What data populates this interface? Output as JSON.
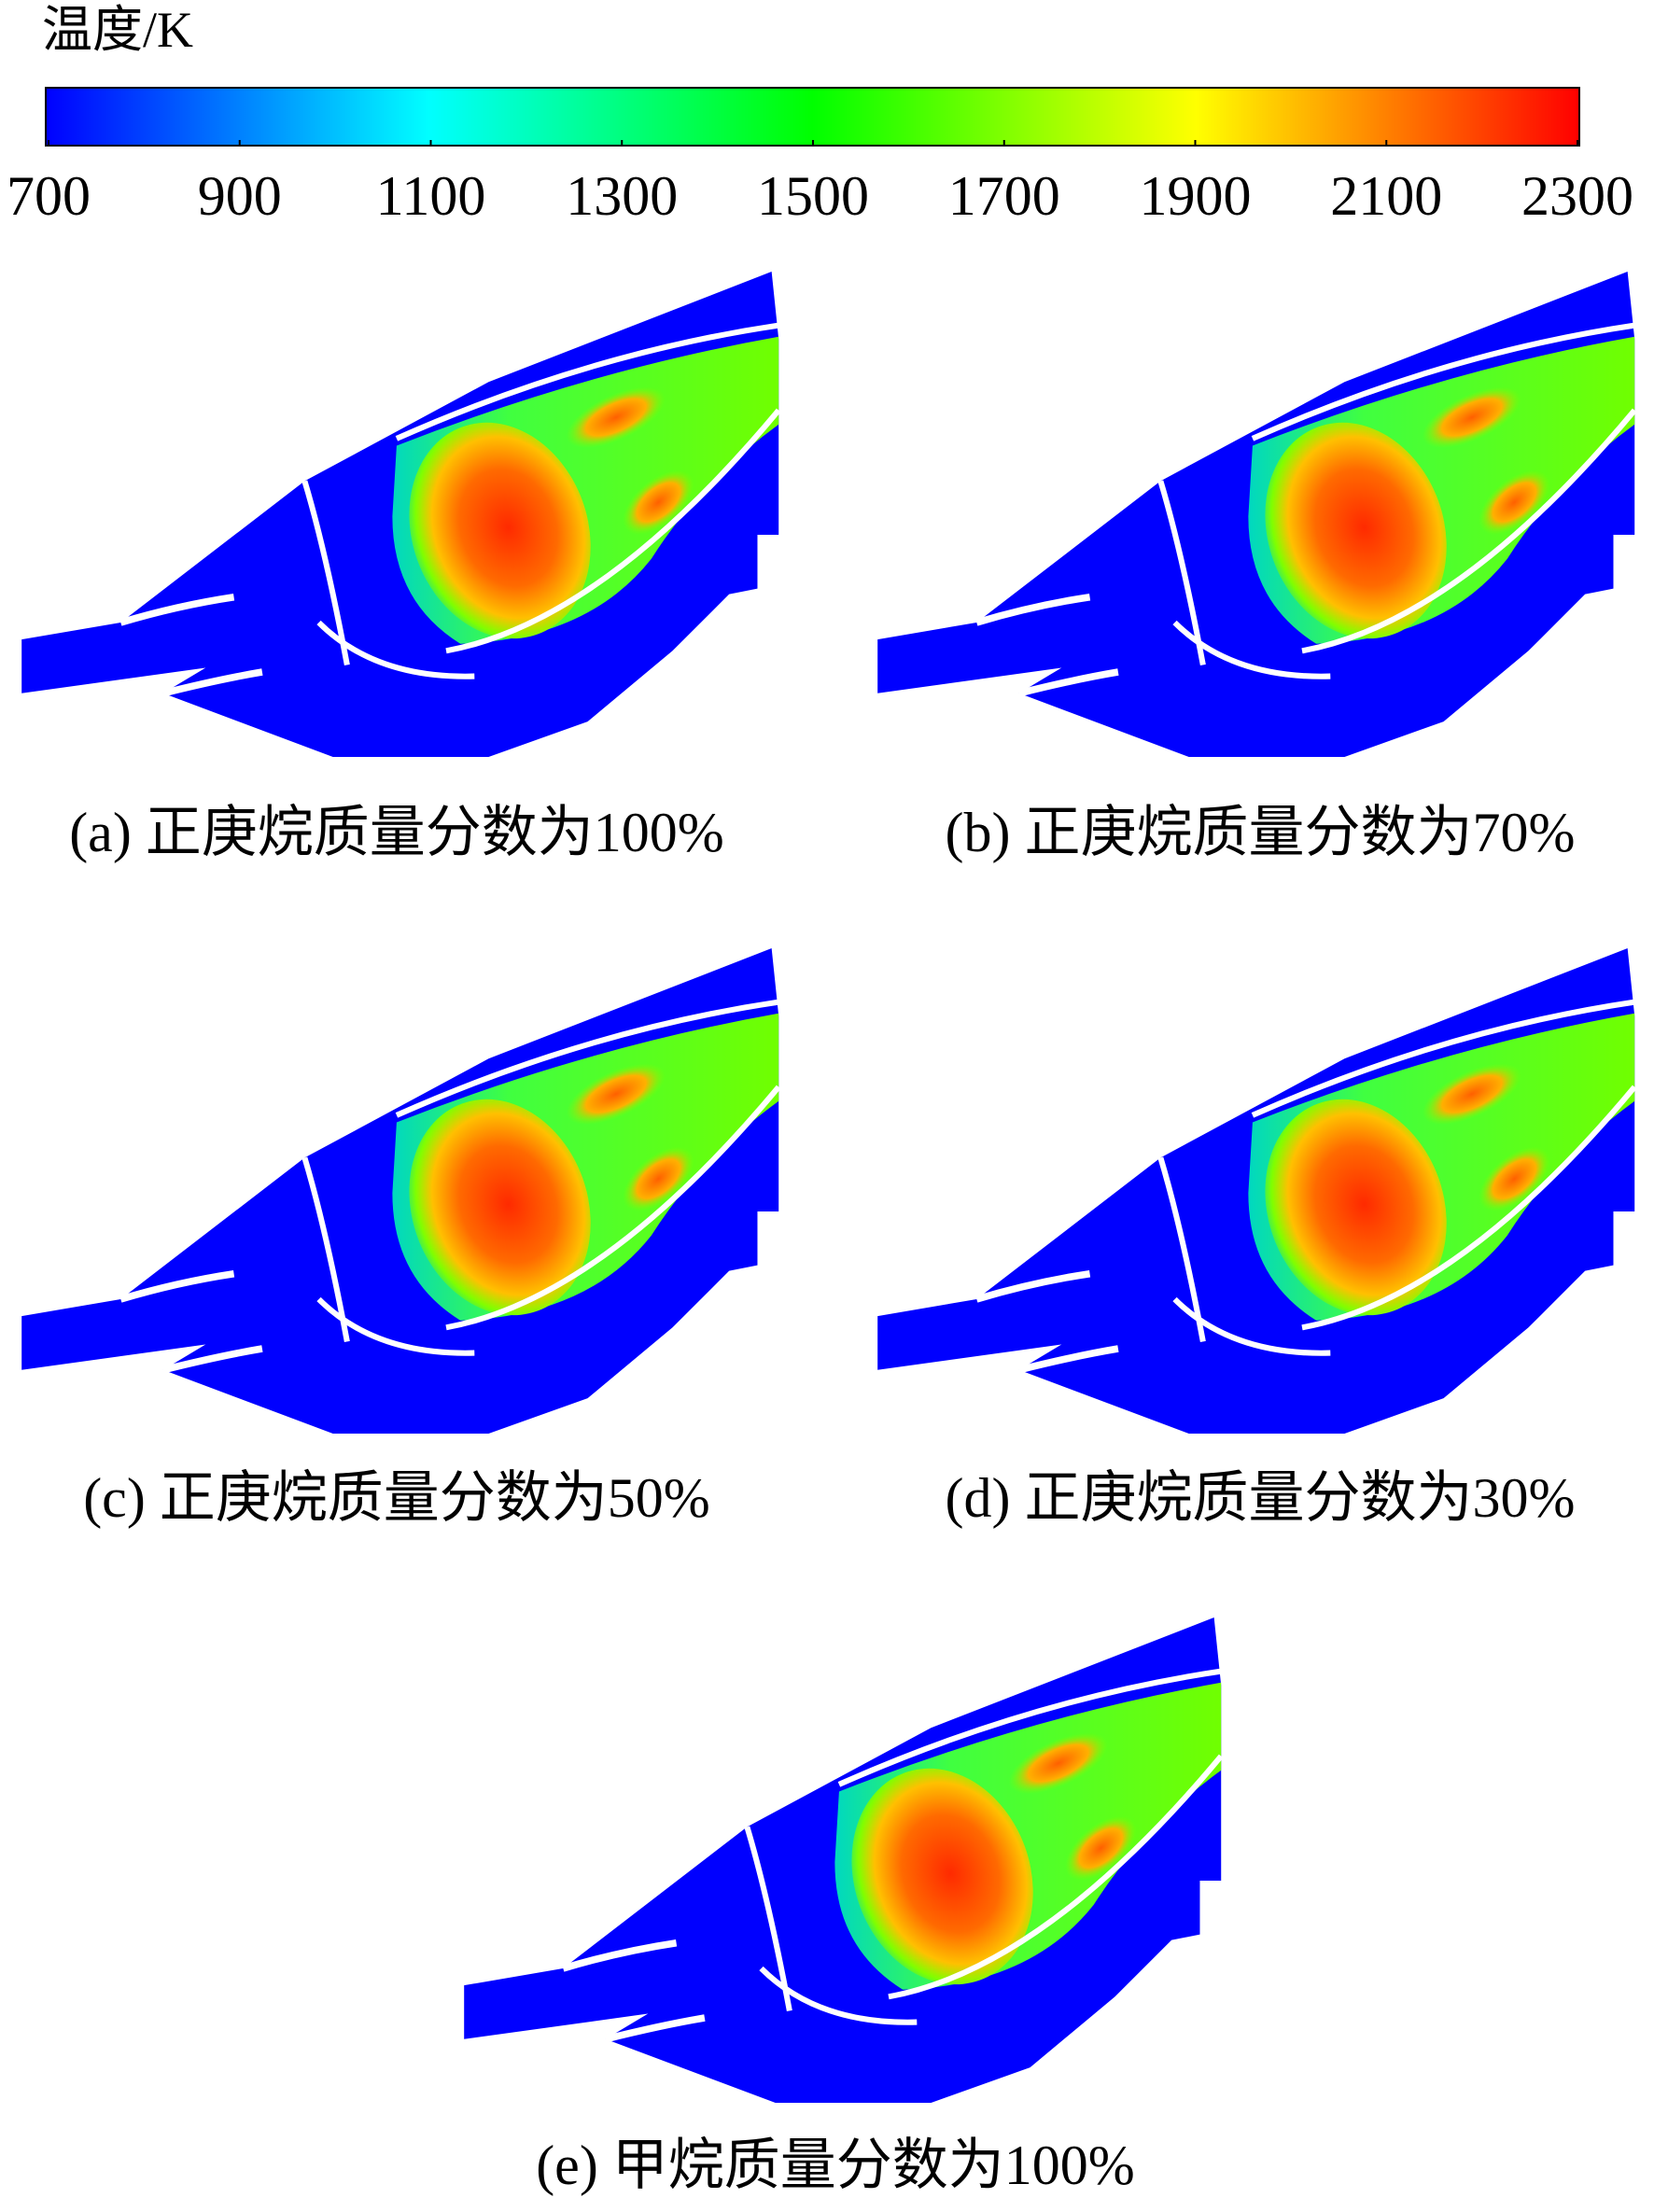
{
  "colorbar": {
    "title": "温度/K",
    "min": 700,
    "max": 2300,
    "ticks": [
      700,
      900,
      1100,
      1300,
      1500,
      1700,
      1900,
      2100,
      2300
    ],
    "colors": [
      "#0000ff",
      "#00ffff",
      "#00ff00",
      "#ffff00",
      "#ff0000"
    ]
  },
  "panels": [
    {
      "caption": "(a) 正庚烷质量分数为100%"
    },
    {
      "caption": "(b) 正庚烷质量分数为70%"
    },
    {
      "caption": "(c) 正庚烷质量分数为50%"
    },
    {
      "caption": "(d) 正庚烷质量分数为30%"
    },
    {
      "caption": "(e) 甲烷质量分数为100%"
    }
  ]
}
